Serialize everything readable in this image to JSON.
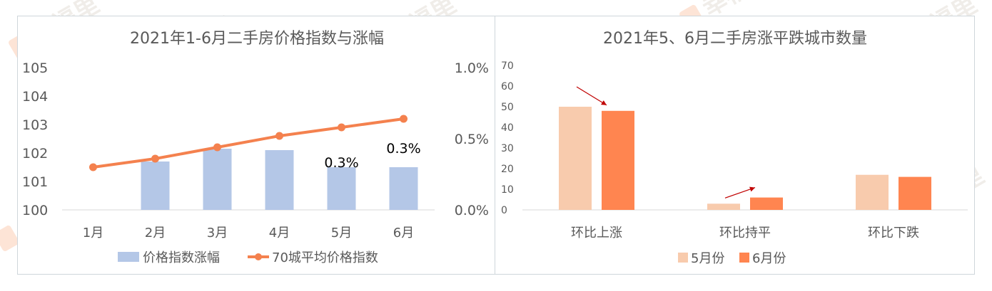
{
  "watermark": "幸福里",
  "colors": {
    "bar_left": "#b4c7e7",
    "line_left": "#f4814e",
    "bar_may": "#f8cbad",
    "bar_june": "#ff8550",
    "arrow": "#c00000",
    "axis_text": "#595959"
  },
  "chart_data": [
    {
      "type": "bar+line",
      "title": "2021年1-6月二手房价格指数与涨幅",
      "categories": [
        "1月",
        "2月",
        "3月",
        "4月",
        "5月",
        "6月"
      ],
      "series": [
        {
          "name": "价格指数涨幅",
          "type": "bar",
          "axis": "right",
          "values": [
            0.0,
            0.34,
            0.43,
            0.42,
            0.3,
            0.3
          ]
        },
        {
          "name": "70城平均价格指数",
          "type": "line",
          "axis": "left",
          "values": [
            101.5,
            101.8,
            102.2,
            102.6,
            102.9,
            103.2
          ]
        }
      ],
      "data_labels": [
        {
          "category": "5月",
          "text": "0.3%"
        },
        {
          "category": "6月",
          "text": "0.3%"
        }
      ],
      "y_left": {
        "range": [
          100,
          105
        ],
        "ticks": [
          "100",
          "101",
          "102",
          "103",
          "104",
          "105"
        ]
      },
      "y_right": {
        "range": [
          0,
          1.0
        ],
        "ticks": [
          "0.0%",
          "0.5%",
          "1.0%"
        ]
      },
      "legend": "bottom",
      "grid": false
    },
    {
      "type": "bar",
      "title": "2021年5、6月二手房涨平跌城市数量",
      "categories": [
        "环比上涨",
        "环比持平",
        "环比下跌"
      ],
      "series": [
        {
          "name": "5月份",
          "values": [
            50,
            3,
            17
          ]
        },
        {
          "name": "6月份",
          "values": [
            48,
            6,
            16
          ]
        }
      ],
      "y": {
        "range": [
          0,
          70
        ],
        "ticks": [
          "0",
          "10",
          "20",
          "30",
          "40",
          "50",
          "60",
          "70"
        ]
      },
      "legend": "bottom",
      "grid": false
    }
  ]
}
